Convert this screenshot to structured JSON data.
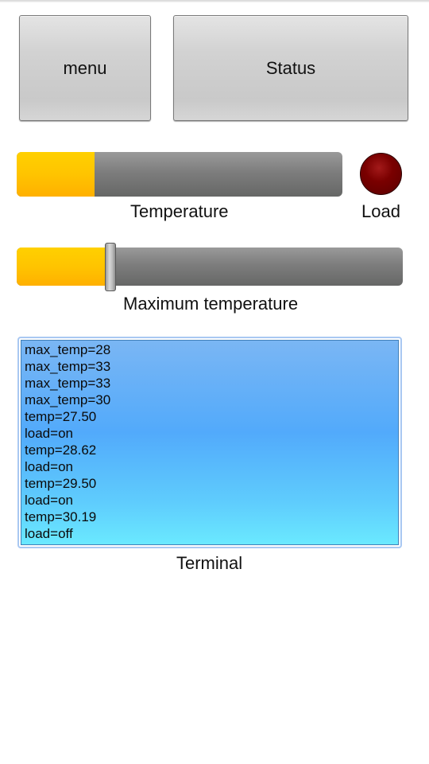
{
  "buttons": {
    "menu_label": "menu",
    "status_label": "Status"
  },
  "temperature": {
    "label": "Temperature",
    "level_fraction": 0.24
  },
  "load": {
    "label": "Load",
    "state": "off",
    "led_color": "#7a0000"
  },
  "max_temperature": {
    "label": "Maximum temperature",
    "slider_fraction": 0.24
  },
  "terminal": {
    "label": "Terminal",
    "lines": [
      "max_temp=28",
      "max_temp=33",
      "max_temp=33",
      "max_temp=30",
      "temp=27.50",
      "load=on",
      "temp=28.62",
      "load=on",
      "temp=29.50",
      "load=on",
      "temp=30.19",
      "load=off"
    ]
  },
  "colors": {
    "accent_fill": "#ffc400",
    "bar_track": "#7d7d7d",
    "terminal_bg": "#52aafb"
  }
}
